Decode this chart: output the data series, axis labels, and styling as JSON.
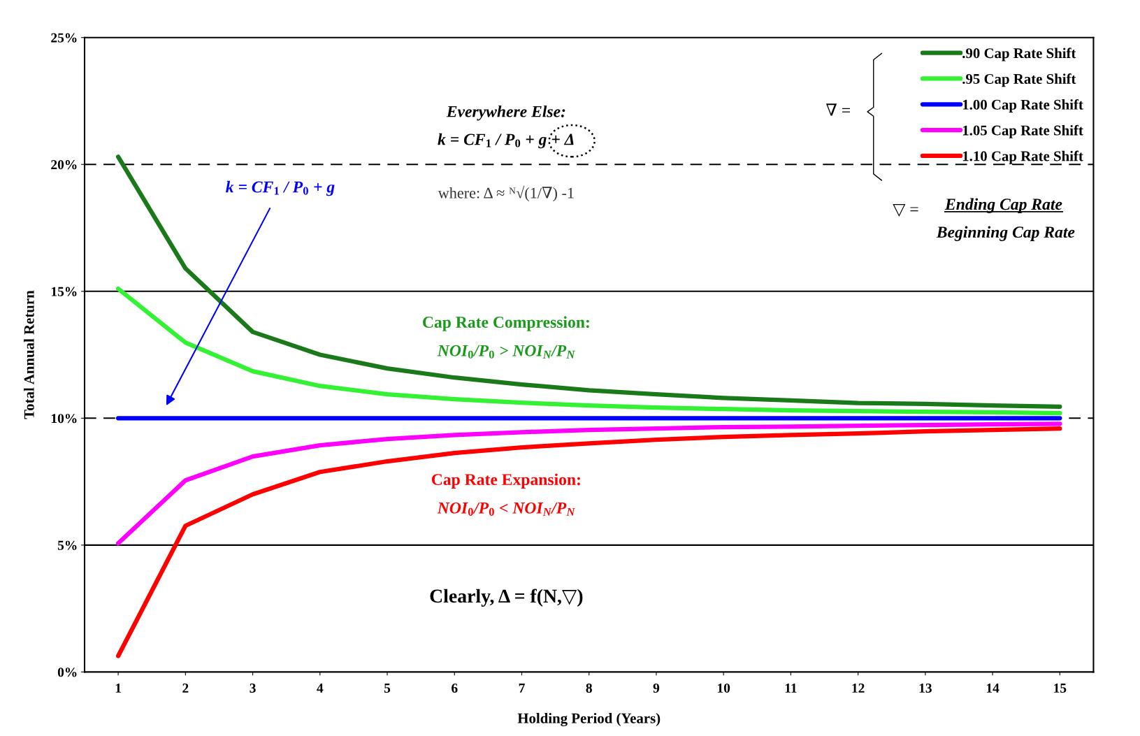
{
  "chart_data": {
    "type": "line",
    "xlabel": "Holding Period (Years)",
    "ylabel": "Total Annual Return",
    "x": [
      1,
      2,
      3,
      4,
      5,
      6,
      7,
      8,
      9,
      10,
      11,
      12,
      13,
      14,
      15
    ],
    "xlim": [
      0.5,
      15.5
    ],
    "xticks": [
      1,
      2,
      3,
      4,
      5,
      6,
      7,
      8,
      9,
      10,
      11,
      12,
      13,
      14,
      15
    ],
    "ylim": [
      0,
      25
    ],
    "yticks": [
      {
        "value": 0,
        "label": "0%"
      },
      {
        "value": 5,
        "label": "5%"
      },
      {
        "value": 10,
        "label": "10%"
      },
      {
        "value": 15,
        "label": "15%"
      },
      {
        "value": 20,
        "label": "20%"
      },
      {
        "value": 25,
        "label": "25%"
      }
    ],
    "series": [
      {
        "name": ".90 Cap Rate Shift",
        "color": "#1a7a1a",
        "values": [
          20.3,
          15.9,
          13.4,
          12.5,
          11.96,
          11.6,
          11.33,
          11.1,
          10.94,
          10.8,
          10.7,
          10.6,
          10.56,
          10.5,
          10.45
        ]
      },
      {
        "name": ".95 Cap Rate Shift",
        "color": "#33f233",
        "values": [
          15.1,
          12.98,
          11.85,
          11.27,
          10.94,
          10.75,
          10.61,
          10.5,
          10.42,
          10.36,
          10.31,
          10.28,
          10.25,
          10.23,
          10.2
        ]
      },
      {
        "name": "1.00 Cap Rate Shift",
        "color": "#0000ff",
        "values": [
          10,
          10,
          10,
          10,
          10,
          10,
          10,
          10,
          10,
          10,
          10,
          10,
          10,
          10,
          10
        ]
      },
      {
        "name": "1.05 Cap Rate Shift",
        "color": "#ff00ff",
        "values": [
          5.07,
          7.55,
          8.49,
          8.93,
          9.18,
          9.34,
          9.45,
          9.54,
          9.59,
          9.65,
          9.67,
          9.7,
          9.73,
          9.76,
          9.78
        ]
      },
      {
        "name": "1.10 Cap Rate Shift",
        "color": "#ff0000",
        "values": [
          0.63,
          5.76,
          7.0,
          7.88,
          8.3,
          8.63,
          8.85,
          9.01,
          9.15,
          9.26,
          9.34,
          9.4,
          9.48,
          9.54,
          9.59
        ]
      }
    ],
    "ref_lines": [
      {
        "axis": "y",
        "value": 5,
        "line_style": "solid",
        "color": "#000000"
      },
      {
        "axis": "y",
        "value": 10,
        "line_style": "dashed",
        "color": "#000000"
      },
      {
        "axis": "y",
        "value": 15,
        "line_style": "solid",
        "color": "#000000"
      },
      {
        "axis": "y",
        "value": 20,
        "line_style": "dashed",
        "color": "#000000"
      }
    ],
    "annotations": [
      "Everywhere Else:",
      "k = CF$_{1}$ / P$_{0}$ + g + Δ",
      "where: Δ ≈ ᴺ√(1/∇) -1",
      "k = CF$_{1}$ / P$_{0}$ + g",
      "∇ =",
      "▽ =",
      "Ending Cap Rate",
      "Beginning Cap Rate",
      "Cap Rate Compression:",
      "NOI$_{0}$/P$_{0}$ > NOI$_{N}$/P$_{N}$",
      "Cap Rate Expansion:",
      "NOI$_{0}$/P$_{0}$ < NOI$_{N}$/P$_{N}$",
      "Clearly, Δ = f(N,▽)"
    ],
    "legend": "top right",
    "marker": "none",
    "line_style": "solid"
  }
}
